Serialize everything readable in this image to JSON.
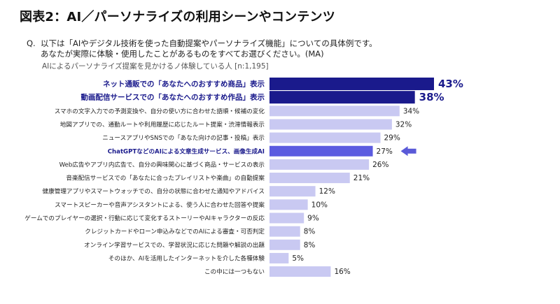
{
  "title": "図表2：AI／パーソナライズの利用シーンやコンテンツ",
  "question": {
    "prefix": "Q.",
    "line1": "以下は「AIやデジタル技術を使った自動提案やパーソナライズ機能」についての具体例です。",
    "line2": "あなたが実際に体験・使用したことがあるものをすべてお選びください。(MA)"
  },
  "subtitle": "AIによるパーソナライズ提案を見かけるノ体験している人 [n:1,195]",
  "colors": {
    "highlight": "#1a1a8c",
    "normal": "#c9c9f2",
    "chatgpt": "#5b5be0",
    "arrow": "#5a5ad8",
    "label_dark": "#222222"
  },
  "chart_data": {
    "type": "bar",
    "orientation": "horizontal",
    "title": "AIによるパーソナライズ提案を見かける／体験している人 [n:1,195]",
    "unit": "%",
    "categories": [
      "ネット通販での「あなたへのおすすめ商品」表示",
      "動画配信サービスでの「あなたへのおすすめ作品」表示",
      "スマホの文字入力での予測変換や、自分の使い方に合わせた語順・候補の変化",
      "地図アプリでの、通勤ルートや利用履歴に応じたルート提案・渋滞情報表示",
      "ニュースアプリやSNSでの「あなた向けの記事・投稿」表示",
      "ChatGPTなどのAIによる文章生成サービス、画像生成AI",
      "Web広告やアプリ内広告で、自分の興味関心に基づく商品・サービスの表示",
      "音楽配信サービスでの「あなたに合ったプレイリストや楽曲」の自動提案",
      "健康管理アプリやスマートウォッチでの、自分の状態に合わせた通知やアドバイス",
      "スマートスピーカーや音声アシスタントによる、使う人に合わせた回答や提案",
      "ゲームでのプレイヤーの選択・行動に応じて変化するストーリーやAIキャラクターの反応",
      "クレジットカードやローン申込みなどでのAIによる審査・可否判定",
      "オンライン学習サービスでの、学習状況に応じた問題や解説の出題",
      "そのほか、AIを活用したインターネットを介した各種体験",
      "この中には一つもない"
    ],
    "values": [
      43,
      38,
      34,
      32,
      29,
      27,
      26,
      21,
      12,
      10,
      9,
      8,
      8,
      5,
      16
    ],
    "value_labels": [
      "43%",
      "38%",
      "34%",
      "32%",
      "29%",
      "27%",
      "26%",
      "21%",
      "12%",
      "10%",
      "9%",
      "8%",
      "8%",
      "5%",
      "16%"
    ],
    "emphasis": [
      "top",
      "top",
      "none",
      "none",
      "none",
      "chatgpt",
      "none",
      "none",
      "none",
      "none",
      "none",
      "none",
      "none",
      "none",
      "none"
    ],
    "xlim": [
      0,
      43
    ],
    "grid": false,
    "legend": "none"
  }
}
